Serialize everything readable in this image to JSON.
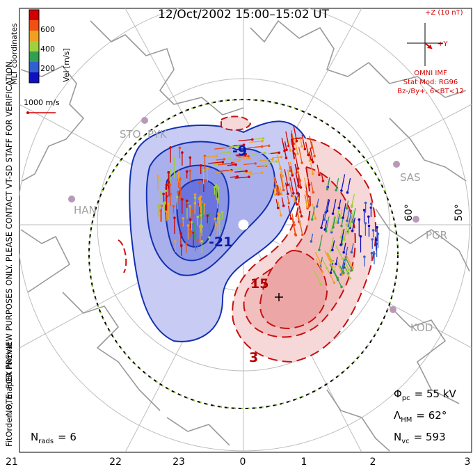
{
  "title": "12/Oct/2002 15:00–15:02 UT",
  "colorbar": {
    "label": "Vel [m/s]",
    "ticks": [
      "600",
      "400",
      "200"
    ],
    "colors": [
      "#d00000",
      "#f05010",
      "#f0a020",
      "#a0d040",
      "#30a050",
      "#3060d0",
      "#1010c0"
    ]
  },
  "coordinate_label": "MLT coordinates",
  "scale_label": "1000 m/s",
  "side_note": "NOTE: FOR PREVIEW PURPOSES ONLY. PLEASE CONTACT VT-SD STAFF FOR VERIFICATION.",
  "fit_note": "FitOrder: 8, mapEX format",
  "imf": {
    "z_label": "+Z (10 nT)",
    "y_label": "+Y",
    "source": "OMNI IMF",
    "model": "Stat Mod: RG96",
    "condition": "Bz-/By+, 6<BT<12"
  },
  "radars": [
    "STO",
    "PYK",
    "HAN",
    "SAS",
    "PGR",
    "KOD"
  ],
  "latitude_labels": [
    "60°",
    "50°"
  ],
  "contour_labels": [
    "-9",
    "-21",
    "15",
    "3"
  ],
  "stats": {
    "phi_label": "Φ",
    "phi_sub": "pc",
    "phi_value": "= 55 kV",
    "lambda_label": "Λ",
    "lambda_sub": "HM",
    "lambda_value": "= 62°",
    "nvc_label": "N",
    "nvc_sub": "vc",
    "nvc_value": "= 593",
    "nrads_label": "N",
    "nrads_sub": "rads",
    "nrads_value": "= 6"
  },
  "mlt_labels": [
    "21",
    "22",
    "23",
    "0",
    "1",
    "2",
    "3"
  ]
}
